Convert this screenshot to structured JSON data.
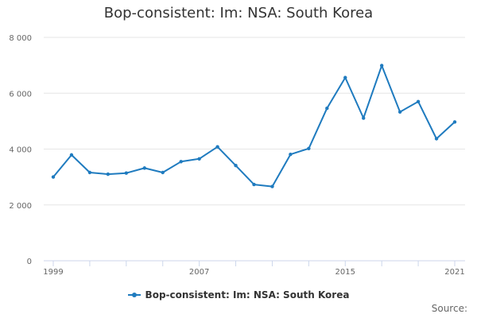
{
  "chart_data": {
    "type": "line",
    "title": "Bop-consistent: Im: NSA: South Korea",
    "xlabel": "",
    "ylabel": "",
    "x": [
      1999,
      2000,
      2001,
      2002,
      2003,
      2004,
      2005,
      2006,
      2007,
      2008,
      2009,
      2010,
      2011,
      2012,
      2013,
      2014,
      2015,
      2016,
      2017,
      2018,
      2019,
      2020,
      2021
    ],
    "series": [
      {
        "name": "Bop-consistent: Im: NSA: South Korea",
        "values": [
          3000,
          3790,
          3160,
          3100,
          3140,
          3320,
          3160,
          3550,
          3650,
          4080,
          3410,
          2730,
          2660,
          3810,
          4020,
          5460,
          6560,
          5110,
          6990,
          5330,
          5700,
          4370,
          4970
        ]
      }
    ],
    "x_tick_labels": [
      "1999",
      "2007",
      "2015",
      "2021"
    ],
    "y_tick_labels": [
      "0",
      "2 000",
      "4 000",
      "6 000",
      "8 000"
    ],
    "y_ticks": [
      0,
      2000,
      4000,
      6000,
      8000
    ],
    "xlim": [
      1999,
      2021
    ],
    "ylim": [
      0,
      8000
    ],
    "grid": "horizontal",
    "legend": "bottom-center",
    "colors": {
      "series": "#1f7bbf",
      "grid": "#e6e6e6",
      "axis": "#ccd6eb"
    }
  },
  "footer": {
    "source_label": "Source:"
  }
}
